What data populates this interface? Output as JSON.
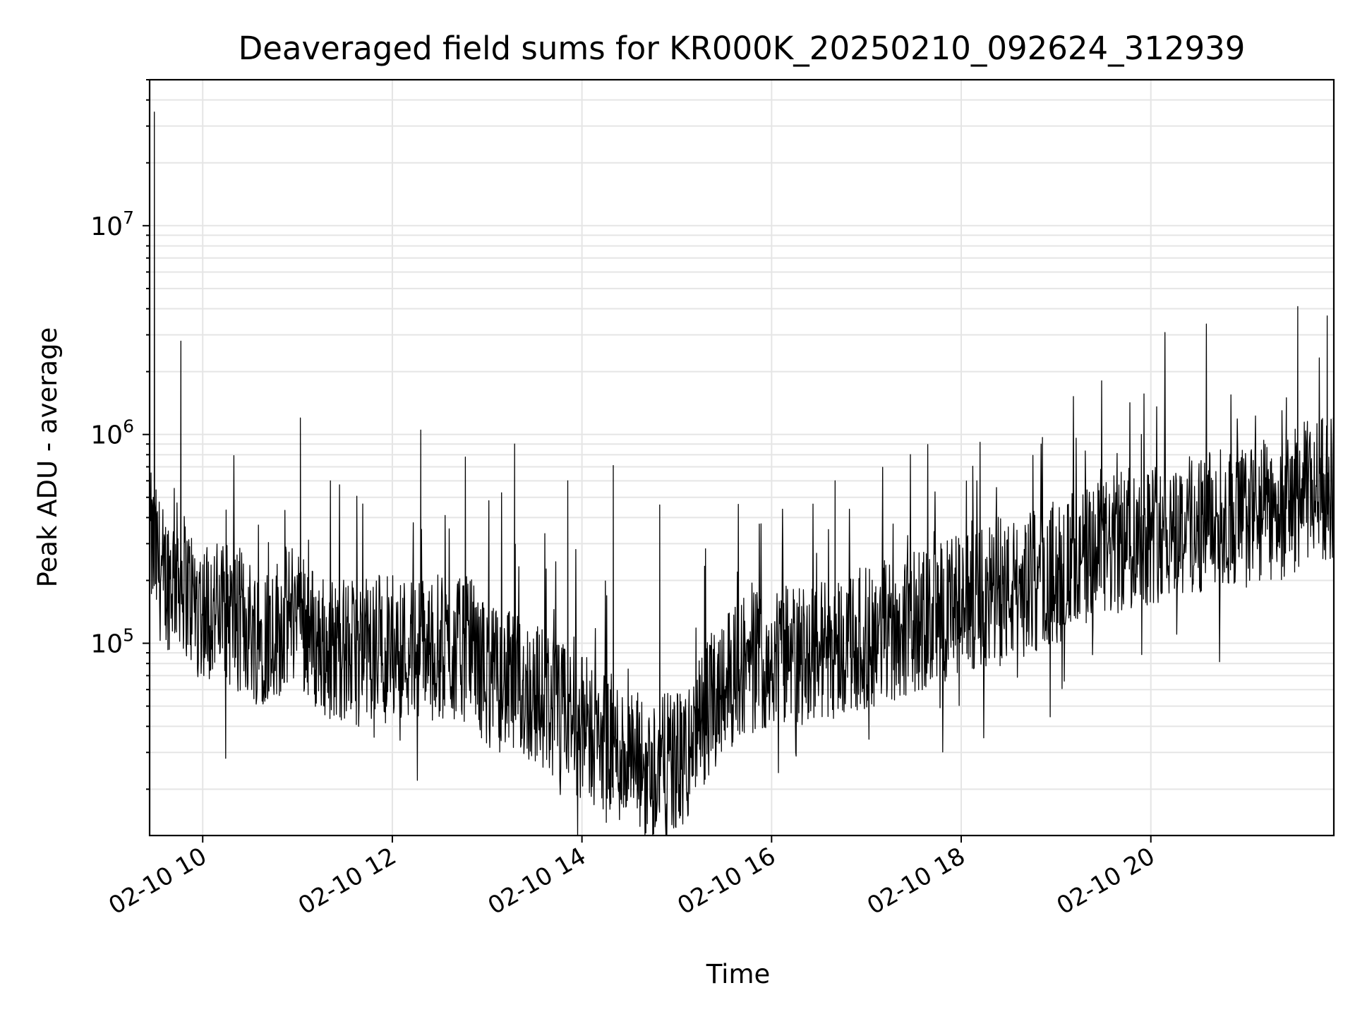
{
  "chart_data": {
    "type": "line",
    "title": "Deaveraged field sums for KR000K_20250210_092624_312939",
    "xlabel": "Time",
    "ylabel": "Peak ADU - average",
    "x_tick_labels": [
      "02-10 10",
      "02-10 12",
      "02-10 14",
      "02-10 16",
      "02-10 18",
      "02-10 20"
    ],
    "x_ticks_hours": [
      10,
      12,
      14,
      16,
      18,
      20
    ],
    "y_scale": "log",
    "y_tick_labels": [
      {
        "base": "10",
        "exp": "5",
        "value": 100000
      },
      {
        "base": "10",
        "exp": "6",
        "value": 1000000
      },
      {
        "base": "10",
        "exp": "7",
        "value": 10000000
      }
    ],
    "xlim_hours": [
      9.44,
      21.93
    ],
    "ylim": [
      12000,
      50000000
    ],
    "grid": true,
    "line_color": "#000000",
    "series": [
      {
        "x_hours": [
          9.45,
          9.5,
          9.6,
          9.75,
          9.9,
          10.0,
          10.2,
          10.4,
          10.6,
          10.8,
          11.0,
          11.2,
          11.4,
          11.6,
          11.8,
          12.0,
          12.2,
          12.4,
          12.6,
          12.8,
          13.0,
          13.2,
          13.4,
          13.6,
          13.8,
          14.0,
          14.2,
          14.4,
          14.5,
          14.7,
          14.9,
          15.1,
          15.3,
          15.5,
          15.7,
          16.0,
          16.3,
          16.6,
          17.0,
          17.4,
          17.8,
          18.2,
          18.6,
          19.0,
          19.4,
          19.8,
          20.2,
          20.6,
          21.0,
          21.4,
          21.7,
          21.93
        ],
        "y_median": [
          300000,
          260000,
          200000,
          220000,
          160000,
          150000,
          140000,
          130000,
          110000,
          120000,
          150000,
          100000,
          95000,
          90000,
          95000,
          100000,
          95000,
          100000,
          90000,
          95000,
          70000,
          65000,
          60000,
          55000,
          45000,
          40000,
          35000,
          30000,
          27000,
          25000,
          26000,
          28000,
          45000,
          70000,
          80000,
          85000,
          90000,
          95000,
          105000,
          120000,
          140000,
          160000,
          180000,
          220000,
          260000,
          320000,
          360000,
          380000,
          400000,
          450000,
          550000,
          560000
        ]
      }
    ],
    "spikes": [
      {
        "x_hours": 9.49,
        "y": 35000000
      },
      {
        "x_hours": 9.77,
        "y": 2800000
      },
      {
        "x_hours": 11.03,
        "y": 1200000
      },
      {
        "x_hours": 12.3,
        "y": 1050000
      },
      {
        "x_hours": 12.77,
        "y": 780000
      },
      {
        "x_hours": 13.29,
        "y": 900000
      },
      {
        "x_hours": 13.85,
        "y": 600000
      },
      {
        "x_hours": 14.33,
        "y": 710000
      },
      {
        "x_hours": 14.82,
        "y": 460000
      },
      {
        "x_hours": 16.67,
        "y": 600000
      },
      {
        "x_hours": 19.9,
        "y": 1000000
      },
      {
        "x_hours": 20.53,
        "y": 750000
      },
      {
        "x_hours": 21.43,
        "y": 1500000
      },
      {
        "x_hours": 21.55,
        "y": 4100000
      },
      {
        "x_hours": 21.86,
        "y": 3700000
      }
    ]
  }
}
